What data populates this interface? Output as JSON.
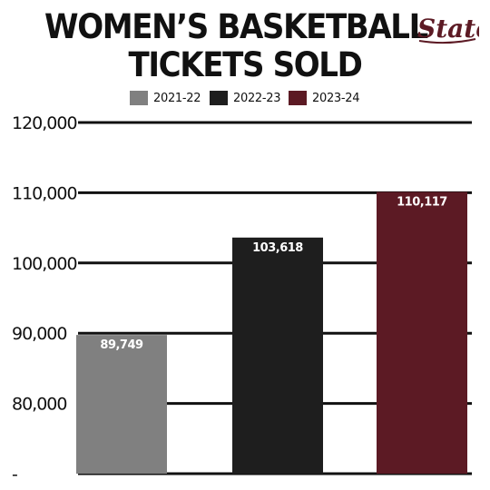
{
  "header": {
    "title_line1": "WOMEN’S BASKETBALL",
    "title_line2": "TICKETS SOLD",
    "logo_text": "State"
  },
  "colors": {
    "series_2021_22": "#808080",
    "series_2022_23": "#1e1e1e",
    "series_2023_24": "#5c1a24",
    "gridline": "#111111"
  },
  "chart_data": {
    "type": "bar",
    "categories": [
      "2021-22",
      "2022-23",
      "2023-24"
    ],
    "values": [
      89749,
      103618,
      110117
    ],
    "value_labels": [
      "89,749",
      "103,618",
      "110,117"
    ],
    "legend": [
      "2021-22",
      "2022-23",
      "2023-24"
    ],
    "legend_placement": "top",
    "ylim": [
      70000,
      120000
    ],
    "yticks": [
      70000,
      80000,
      90000,
      100000,
      110000,
      120000
    ],
    "ytick_labels": [
      "-",
      "80,000",
      "90,000",
      "100,000",
      "110,000",
      "120,000"
    ],
    "grid": true
  }
}
